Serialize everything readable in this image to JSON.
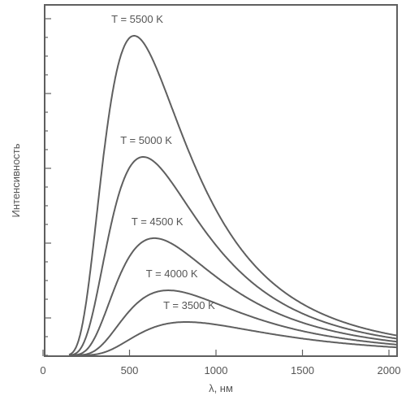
{
  "chart_data": {
    "type": "line",
    "xlabel": "λ, нм",
    "ylabel": "Интенсивность",
    "xlim": [
      0,
      2050
    ],
    "x_ticks": [
      0,
      500,
      1000,
      1500,
      2000
    ],
    "x_tick_labels": [
      "0",
      "500",
      "1000",
      "1500",
      "2000"
    ],
    "ylim": [
      0,
      1
    ],
    "grid": false,
    "line_color": "#5f5f5f",
    "series": [
      {
        "name": "T = 5500 K",
        "temperature": 5500,
        "label": "T = 5500 K"
      },
      {
        "name": "T = 5000 K",
        "temperature": 5000,
        "label": "T = 5000 K"
      },
      {
        "name": "T = 4500 K",
        "temperature": 4500,
        "label": "T = 4500 K"
      },
      {
        "name": "T = 4000 K",
        "temperature": 4000,
        "label": "T = 4000 K"
      },
      {
        "name": "T = 3500 K",
        "temperature": 3500,
        "label": "T = 3500 K"
      }
    ]
  }
}
